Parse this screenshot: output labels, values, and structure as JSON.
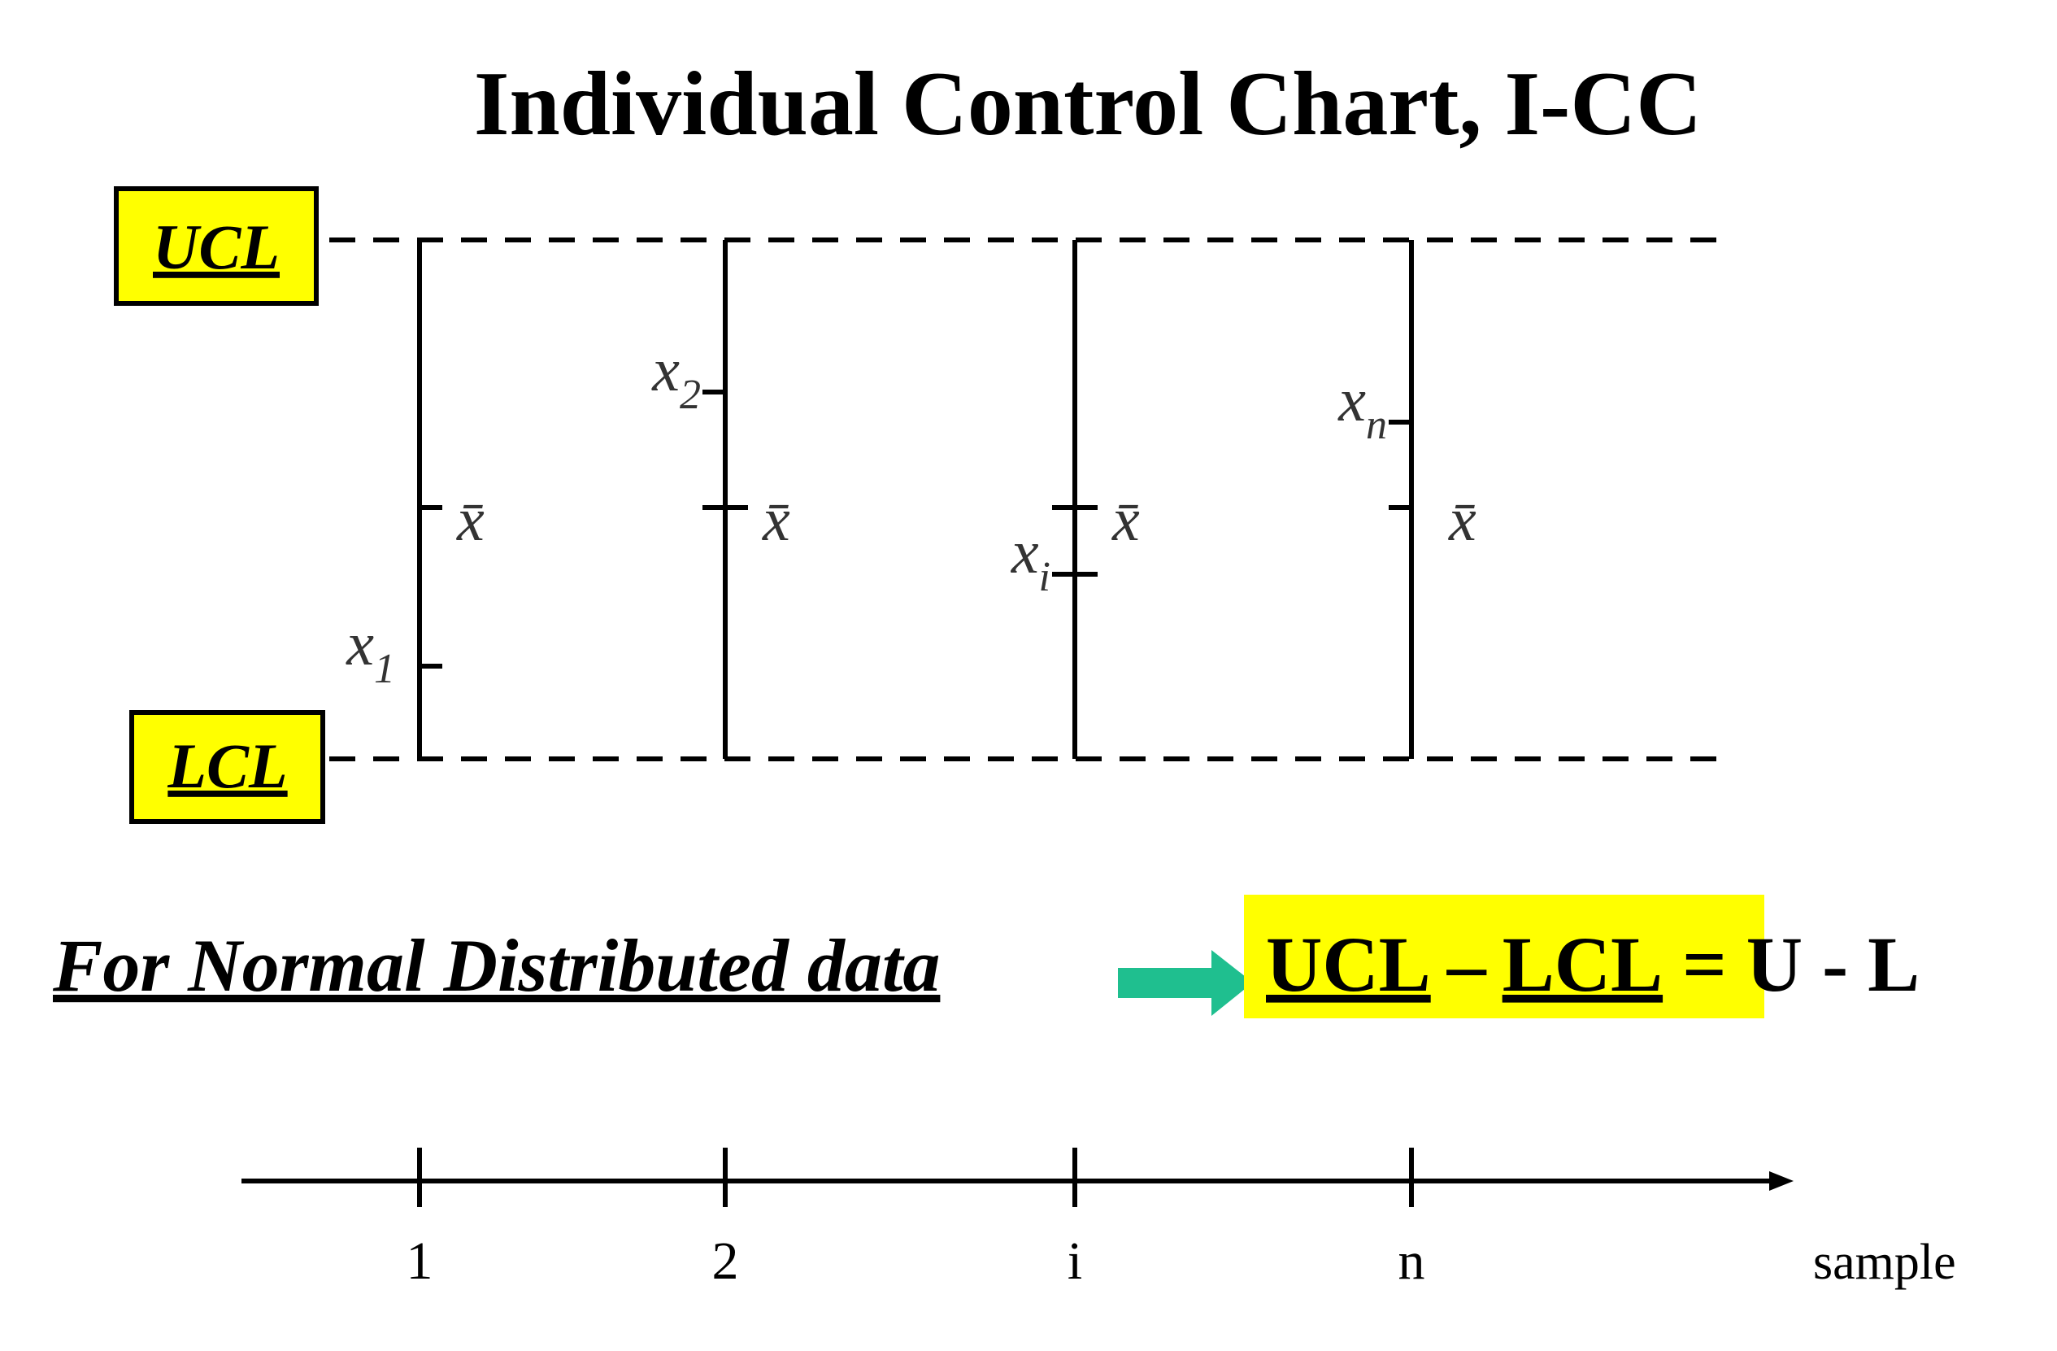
{
  "title": "Individual Control Chart, I-CC",
  "limits": {
    "upper": "UCL",
    "lower": "LCL"
  },
  "samples": [
    {
      "point": "x",
      "sub": "1",
      "mean": "x̄",
      "axis": "1"
    },
    {
      "point": "x",
      "sub": "2",
      "mean": "x̄",
      "axis": "2"
    },
    {
      "point": "x",
      "sub": "i",
      "mean": "x̄",
      "axis": "i"
    },
    {
      "point": "x",
      "sub": "n",
      "mean": "x̄",
      "axis": "n"
    }
  ],
  "axis_label": "sample",
  "formula": {
    "condition": "For Normal Distributed data",
    "left": "UCL",
    "minus": "–",
    "right": "LCL",
    "result": "= U - L"
  }
}
